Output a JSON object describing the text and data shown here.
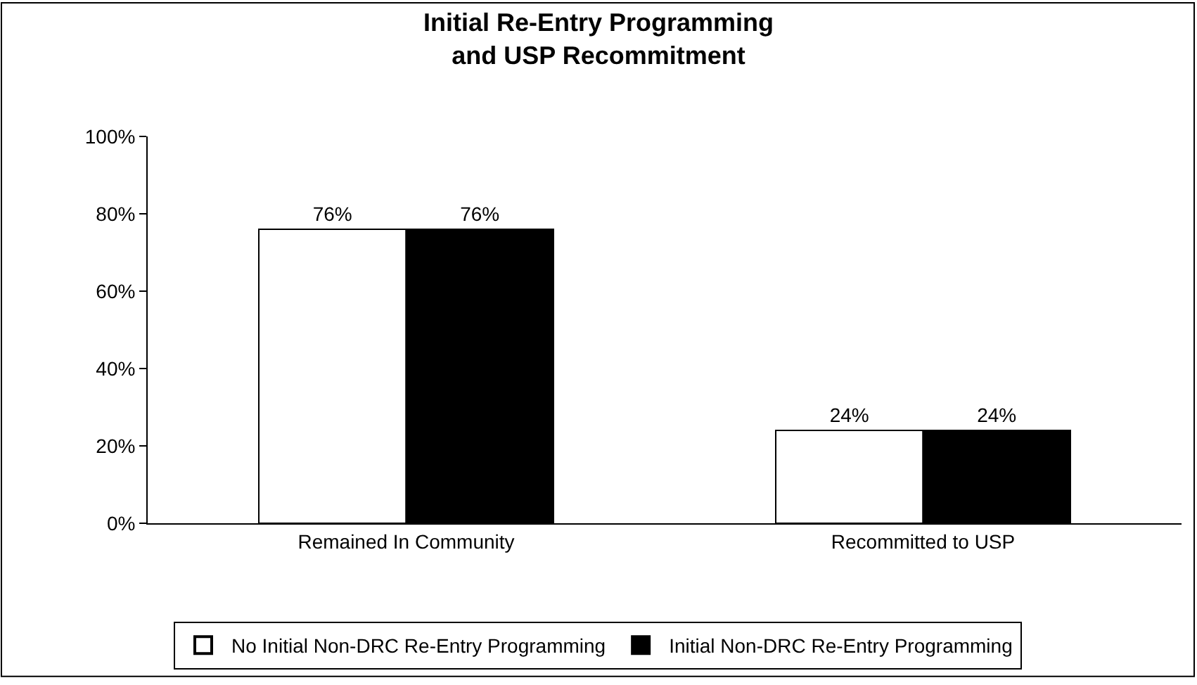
{
  "chart_data": {
    "type": "bar",
    "title": "Initial Re-Entry Programming\nand USP Recommitment",
    "categories": [
      "Remained In Community",
      "Recommitted to USP"
    ],
    "series": [
      {
        "name": "No Initial Non-DRC Re-Entry Programming",
        "color": "#ffffff",
        "values": [
          76,
          24
        ],
        "value_labels": [
          "76%",
          "24%"
        ]
      },
      {
        "name": "Initial Non-DRC Re-Entry Programming",
        "color": "#000000",
        "values": [
          76,
          24
        ],
        "value_labels": [
          "76%",
          "24%"
        ]
      }
    ],
    "ylim": [
      0,
      100
    ],
    "yticks": [
      {
        "value": 0,
        "label": "0%"
      },
      {
        "value": 20,
        "label": "20%"
      },
      {
        "value": 40,
        "label": "40%"
      },
      {
        "value": 60,
        "label": "60%"
      },
      {
        "value": 80,
        "label": "80%"
      },
      {
        "value": 100,
        "label": "100%"
      }
    ],
    "grid": false,
    "legend": "bottom"
  }
}
